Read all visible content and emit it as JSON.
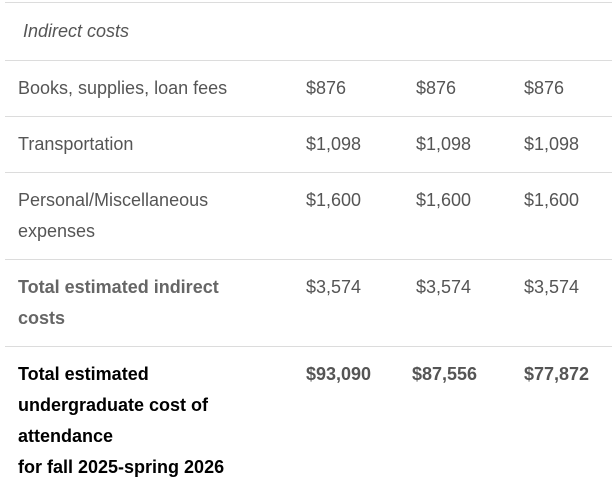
{
  "section_header": "Indirect costs",
  "rows": [
    {
      "label": "Books, supplies, loan fees",
      "values": [
        "$876",
        "$876",
        "$876"
      ]
    },
    {
      "label": "Transportation",
      "values": [
        "$1,098",
        "$1,098",
        "$1,098"
      ]
    },
    {
      "label": "Personal/Miscellaneous expenses",
      "values": [
        "$1,600",
        "$1,600",
        "$1,600"
      ]
    },
    {
      "label": "Total estimated indirect costs",
      "values": [
        "$3,574",
        "$3,574",
        "$3,574"
      ]
    }
  ],
  "total": {
    "label_lines": [
      "Total estimated undergraduate cost of attendance",
      "for fall 2025-spring 2026"
    ],
    "values": [
      "$93,090",
      "$87,556",
      "$77,872"
    ]
  }
}
